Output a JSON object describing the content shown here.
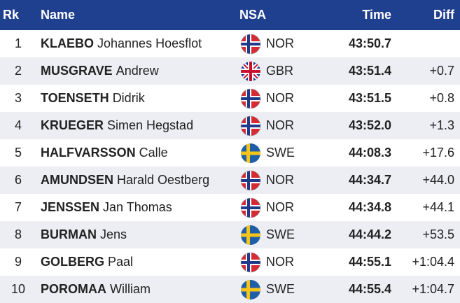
{
  "header": {
    "rank": "Rk",
    "name": "Name",
    "nsa": "NSA",
    "time": "Time",
    "diff": "Diff"
  },
  "rows": [
    {
      "rank": 1,
      "surname": "KLAEBO",
      "first_name": "Johannes Hoesflot",
      "nsa": "NOR",
      "time": "43:50.7",
      "diff": null
    },
    {
      "rank": 2,
      "surname": "MUSGRAVE",
      "first_name": "Andrew",
      "nsa": "GBR",
      "time": "43:51.4",
      "diff": "+0.7"
    },
    {
      "rank": 3,
      "surname": "TOENSETH",
      "first_name": "Didrik",
      "nsa": "NOR",
      "time": "43:51.5",
      "diff": "+0.8"
    },
    {
      "rank": 4,
      "surname": "KRUEGER",
      "first_name": "Simen Hegstad",
      "nsa": "NOR",
      "time": "43:52.0",
      "diff": "+1.3"
    },
    {
      "rank": 5,
      "surname": "HALFVARSSON",
      "first_name": "Calle",
      "nsa": "SWE",
      "time": "44:08.3",
      "diff": "+17.6"
    },
    {
      "rank": 6,
      "surname": "AMUNDSEN",
      "first_name": "Harald Oestberg",
      "nsa": "NOR",
      "time": "44:34.7",
      "diff": "+44.0"
    },
    {
      "rank": 7,
      "surname": "JENSSEN",
      "first_name": "Jan Thomas",
      "nsa": "NOR",
      "time": "44:34.8",
      "diff": "+44.1"
    },
    {
      "rank": 8,
      "surname": "BURMAN",
      "first_name": "Jens",
      "nsa": "SWE",
      "time": "44:44.2",
      "diff": "+53.5"
    },
    {
      "rank": 9,
      "surname": "GOLBERG",
      "first_name": "Paal",
      "nsa": "NOR",
      "time": "44:55.1",
      "diff": "+1:04.4"
    },
    {
      "rank": 10,
      "surname": "POROMAA",
      "first_name": "William",
      "nsa": "SWE",
      "time": "44:55.4",
      "diff": "+1:04.7"
    }
  ]
}
